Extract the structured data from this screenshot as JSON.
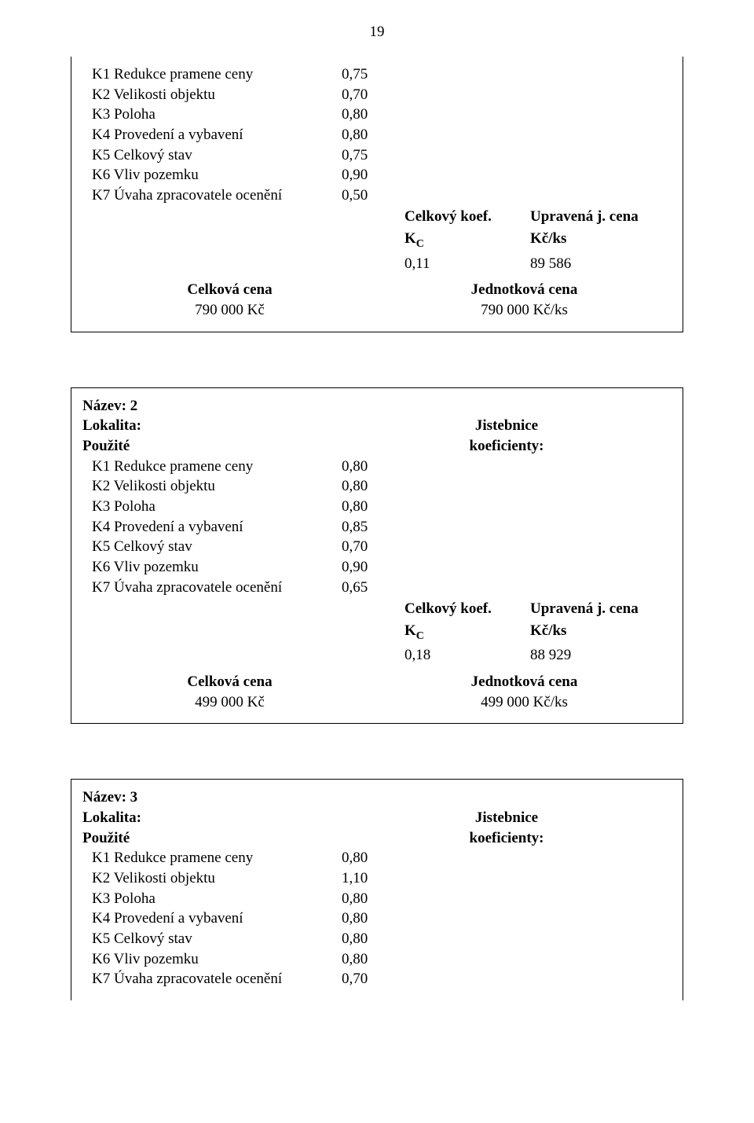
{
  "page_number": "19",
  "block1": {
    "rows": [
      {
        "label": "K1 Redukce pramene ceny",
        "value": "0,75"
      },
      {
        "label": "K2 Velikosti objektu",
        "value": "0,70"
      },
      {
        "label": "K3 Poloha",
        "value": "0,80"
      },
      {
        "label": "K4 Provedení a vybavení",
        "value": "0,80"
      },
      {
        "label": "K5 Celkový stav",
        "value": "0,75"
      },
      {
        "label": "K6 Vliv pozemku",
        "value": "0,90"
      },
      {
        "label": "K7 Úvaha zpracovatele ocenění",
        "value": "0,50"
      }
    ],
    "koef_header_left": "Celkový koef.",
    "koef_header_right": "Upravená j. cena",
    "kc_label": "K",
    "kc_sub": "C",
    "unit_label": "Kč/ks",
    "kc_value": "0,11",
    "unit_value": "89 586",
    "total_label": "Celková cena",
    "unit_price_label": "Jednotková cena",
    "total_value": "790 000 Kč",
    "unit_price_value": "790 000 Kč/ks"
  },
  "block2": {
    "title": "Název: 2",
    "locality_label": "Lokalita:",
    "locality_value": "Jistebnice",
    "used_label": "Použité",
    "coef_label": "koeficienty:",
    "rows": [
      {
        "label": "K1 Redukce pramene ceny",
        "value": "0,80"
      },
      {
        "label": "K2 Velikosti objektu",
        "value": "0,80"
      },
      {
        "label": "K3 Poloha",
        "value": "0,80"
      },
      {
        "label": "K4 Provedení a vybavení",
        "value": "0,85"
      },
      {
        "label": "K5 Celkový stav",
        "value": "0,70"
      },
      {
        "label": "K6 Vliv pozemku",
        "value": "0,90"
      },
      {
        "label": "K7 Úvaha zpracovatele ocenění",
        "value": "0,65"
      }
    ],
    "koef_header_left": "Celkový koef.",
    "koef_header_right": "Upravená j. cena",
    "kc_label": "K",
    "kc_sub": "C",
    "unit_label": "Kč/ks",
    "kc_value": "0,18",
    "unit_value": "88 929",
    "total_label": "Celková cena",
    "unit_price_label": "Jednotková cena",
    "total_value": "499 000 Kč",
    "unit_price_value": "499 000 Kč/ks"
  },
  "block3": {
    "title": "Název: 3",
    "locality_label": "Lokalita:",
    "locality_value": "Jistebnice",
    "used_label": "Použité",
    "coef_label": "koeficienty:",
    "rows": [
      {
        "label": "K1 Redukce pramene ceny",
        "value": "0,80"
      },
      {
        "label": "K2 Velikosti objektu",
        "value": "1,10"
      },
      {
        "label": "K3 Poloha",
        "value": "0,80"
      },
      {
        "label": "K4 Provedení a vybavení",
        "value": "0,80"
      },
      {
        "label": "K5 Celkový stav",
        "value": "0,80"
      },
      {
        "label": "K6 Vliv pozemku",
        "value": "0,80"
      },
      {
        "label": "K7 Úvaha zpracovatele ocenění",
        "value": "0,70"
      }
    ]
  }
}
